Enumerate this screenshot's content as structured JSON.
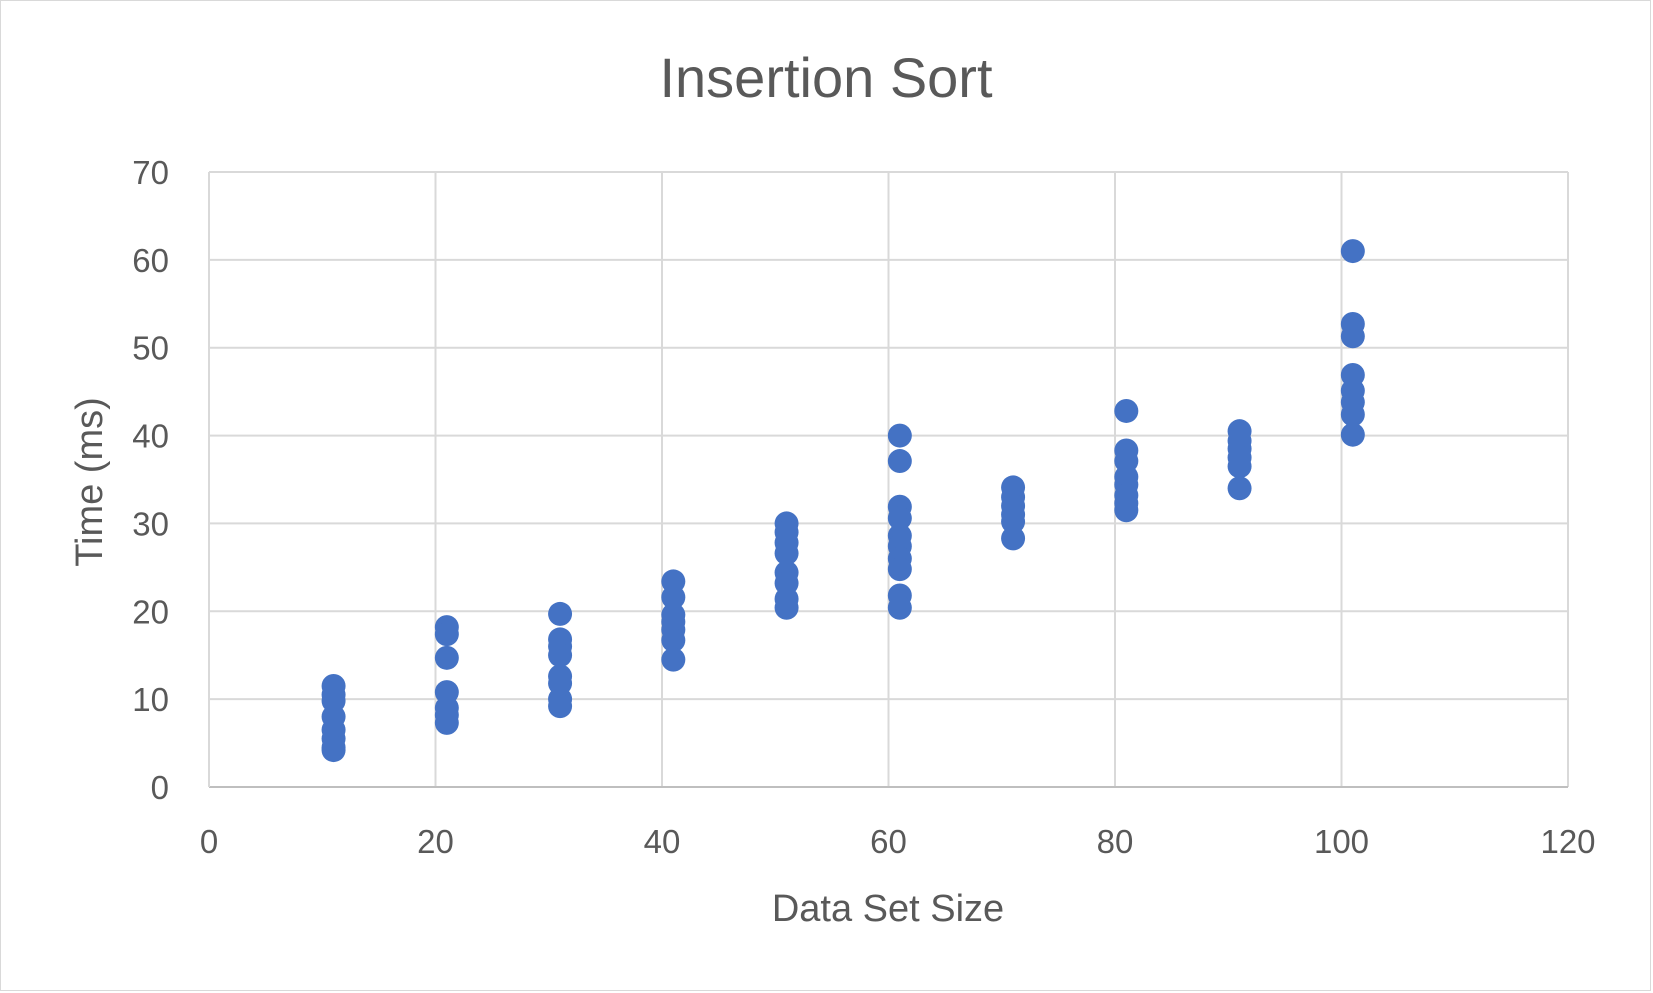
{
  "chart_data": {
    "type": "scatter",
    "title": "Insertion Sort",
    "xlabel": "Data Set Size",
    "ylabel": "Time (ms)",
    "xlim": [
      0,
      120
    ],
    "ylim": [
      0,
      70
    ],
    "xticks": [
      0,
      20,
      40,
      60,
      80,
      100,
      120
    ],
    "yticks": [
      0,
      10,
      20,
      30,
      40,
      50,
      60,
      70
    ],
    "grid": true,
    "legend": "none",
    "marker_color": "#4472C4",
    "series": [
      {
        "points": [
          [
            11,
            11.5
          ],
          [
            11,
            10.5
          ],
          [
            11,
            9.8
          ],
          [
            11,
            8.0
          ],
          [
            11,
            6.5
          ],
          [
            11,
            5.5
          ],
          [
            11,
            4.5
          ],
          [
            11,
            4.2
          ],
          [
            21,
            18.2
          ],
          [
            21,
            17.4
          ],
          [
            21,
            14.7
          ],
          [
            21,
            10.8
          ],
          [
            21,
            9.0
          ],
          [
            21,
            8.2
          ],
          [
            21,
            7.3
          ],
          [
            31,
            19.7
          ],
          [
            31,
            16.8
          ],
          [
            31,
            16.0
          ],
          [
            31,
            15.0
          ],
          [
            31,
            12.6
          ],
          [
            31,
            11.8
          ],
          [
            31,
            10.0
          ],
          [
            31,
            9.2
          ],
          [
            41,
            23.4
          ],
          [
            41,
            21.6
          ],
          [
            41,
            19.6
          ],
          [
            41,
            18.8
          ],
          [
            41,
            17.9
          ],
          [
            41,
            16.7
          ],
          [
            41,
            14.5
          ],
          [
            51,
            30.0
          ],
          [
            51,
            29.0
          ],
          [
            51,
            27.8
          ],
          [
            51,
            26.6
          ],
          [
            51,
            24.4
          ],
          [
            51,
            23.2
          ],
          [
            51,
            21.4
          ],
          [
            51,
            20.4
          ],
          [
            61,
            40.0
          ],
          [
            61,
            37.1
          ],
          [
            61,
            31.9
          ],
          [
            61,
            30.6
          ],
          [
            61,
            28.6
          ],
          [
            61,
            27.4
          ],
          [
            61,
            26.0
          ],
          [
            61,
            24.8
          ],
          [
            61,
            21.8
          ],
          [
            61,
            20.4
          ],
          [
            71,
            34.1
          ],
          [
            71,
            33.0
          ],
          [
            71,
            32.0
          ],
          [
            71,
            31.0
          ],
          [
            71,
            30.2
          ],
          [
            71,
            28.3
          ],
          [
            81,
            42.8
          ],
          [
            81,
            38.3
          ],
          [
            81,
            37.1
          ],
          [
            81,
            35.3
          ],
          [
            81,
            34.4
          ],
          [
            81,
            33.2
          ],
          [
            81,
            32.3
          ],
          [
            81,
            31.5
          ],
          [
            91,
            40.5
          ],
          [
            91,
            39.4
          ],
          [
            91,
            38.5
          ],
          [
            91,
            37.5
          ],
          [
            91,
            36.5
          ],
          [
            91,
            34.0
          ],
          [
            101,
            61.0
          ],
          [
            101,
            52.7
          ],
          [
            101,
            51.3
          ],
          [
            101,
            46.9
          ],
          [
            101,
            45.1
          ],
          [
            101,
            43.8
          ],
          [
            101,
            42.4
          ],
          [
            101,
            40.1
          ]
        ]
      }
    ]
  }
}
